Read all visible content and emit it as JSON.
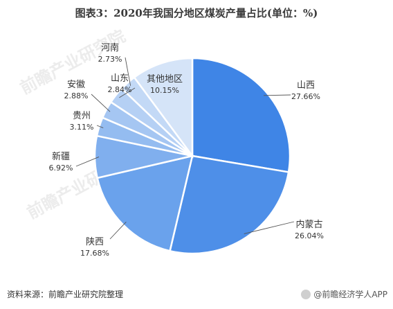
{
  "chart_data": {
    "type": "pie",
    "title": "图表3：2020年我国分地区煤炭产量占比(单位：%)",
    "slices": [
      {
        "label": "山西",
        "value": 27.66,
        "value_label": "27.66%",
        "color": "#3f85e6"
      },
      {
        "label": "内蒙古",
        "value": 26.04,
        "value_label": "26.04%",
        "color": "#4e8fe8"
      },
      {
        "label": "陕西",
        "value": 17.68,
        "value_label": "17.68%",
        "color": "#6aa2ec"
      },
      {
        "label": "新疆",
        "value": 6.92,
        "value_label": "6.92%",
        "color": "#80afee"
      },
      {
        "label": "贵州",
        "value": 3.11,
        "value_label": "3.11%",
        "color": "#94bcf0"
      },
      {
        "label": "安徽",
        "value": 2.88,
        "value_label": "2.88%",
        "color": "#a5c6f2"
      },
      {
        "label": "山东",
        "value": 2.84,
        "value_label": "2.84%",
        "color": "#b5d0f4"
      },
      {
        "label": "河南",
        "value": 2.73,
        "value_label": "2.73%",
        "color": "#c3d9f6"
      },
      {
        "label": "其他地区",
        "value": 10.15,
        "value_label": "10.15%",
        "color": "#d5e4f8"
      }
    ]
  },
  "footer": {
    "source": "资料来源：前瞻产业研究院整理",
    "brand": "@前瞻经济学人APP"
  }
}
